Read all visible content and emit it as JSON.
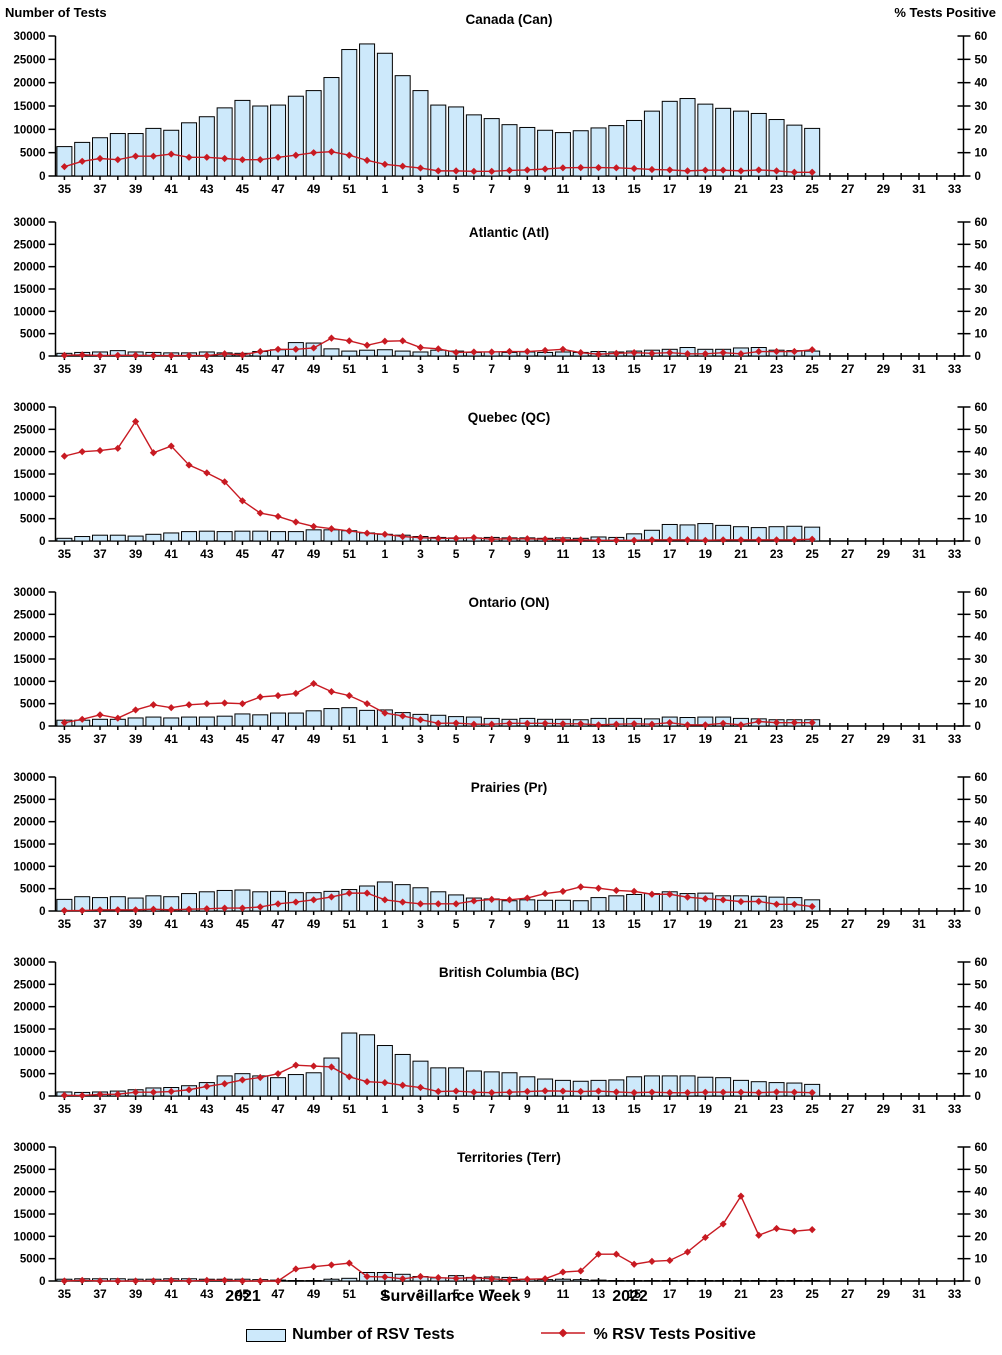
{
  "header": {
    "left_axis_label": "Number of Tests",
    "right_axis_label": "% Tests Positive"
  },
  "footer": {
    "year_left": "2021",
    "xlabel": "Surveillance Week",
    "year_right": "2022",
    "legend_bar_label": "Number of RSV Tests",
    "legend_line_label": "% RSV Tests Positive"
  },
  "colors": {
    "bar_fill": "#cde9fb",
    "bar_stroke": "#000000",
    "line": "#c81a22",
    "text": "#000000"
  },
  "chart_data": {
    "type": "bar+line",
    "x_categories": [
      "35",
      "36",
      "37",
      "38",
      "39",
      "40",
      "41",
      "42",
      "43",
      "44",
      "45",
      "46",
      "47",
      "48",
      "49",
      "50",
      "51",
      "52",
      "1",
      "2",
      "3",
      "4",
      "5",
      "6",
      "7",
      "8",
      "9",
      "10",
      "11",
      "12",
      "13",
      "14",
      "15",
      "16",
      "17",
      "18",
      "19",
      "20",
      "21",
      "22",
      "23",
      "24",
      "25",
      "26",
      "27",
      "28",
      "29",
      "30",
      "31",
      "32",
      "33"
    ],
    "x_tick_labels": [
      "35",
      "37",
      "39",
      "41",
      "43",
      "45",
      "47",
      "49",
      "51",
      "1",
      "3",
      "5",
      "7",
      "9",
      "11",
      "13",
      "15",
      "17",
      "19",
      "21",
      "23",
      "25",
      "27",
      "29",
      "31",
      "33"
    ],
    "left_axis": {
      "label": "Number of Tests",
      "ticks": [
        0,
        5000,
        10000,
        15000,
        20000,
        25000,
        30000
      ],
      "max": 30000
    },
    "right_axis": {
      "label": "% Tests Positive",
      "ticks": [
        0,
        10,
        20,
        30,
        40,
        50,
        60
      ],
      "max": 60
    },
    "bar_series_name": "Number of RSV Tests",
    "line_series_name": "% RSV Tests Positive",
    "weeks_with_data": 43,
    "panels": [
      {
        "title": "Canada (Can)",
        "tests": [
          6300,
          7200,
          8200,
          9100,
          9100,
          10200,
          9800,
          11400,
          12700,
          14600,
          16200,
          15000,
          15200,
          17100,
          18300,
          21100,
          27100,
          28300,
          26300,
          21500,
          18300,
          15200,
          14800,
          13100,
          12300,
          11000,
          10400,
          9800,
          9300,
          9700,
          10300,
          10800,
          11900,
          13900,
          16000,
          16600,
          15400,
          14500,
          13900,
          13400,
          12100,
          10900,
          10200
        ],
        "pct_positive": [
          4,
          6.3,
          7.5,
          7,
          8.5,
          8.5,
          9.4,
          8,
          8,
          7.5,
          7,
          7,
          8,
          8.9,
          10,
          10.4,
          8.9,
          6.7,
          5,
          4.2,
          3.4,
          2.2,
          2.2,
          2,
          2,
          2.4,
          2.6,
          3,
          3.5,
          3.6,
          3.6,
          3.5,
          3.2,
          2.8,
          2.6,
          2.2,
          2.5,
          2.5,
          2.2,
          2.6,
          2.2,
          1.6,
          1.6
        ]
      },
      {
        "title": "Atlantic (Atl)",
        "tests": [
          600,
          800,
          900,
          1200,
          900,
          800,
          700,
          700,
          900,
          700,
          600,
          1000,
          1400,
          3000,
          2900,
          1600,
          1100,
          1300,
          1400,
          1100,
          900,
          1300,
          1100,
          800,
          900,
          800,
          900,
          800,
          900,
          800,
          1000,
          900,
          1100,
          1300,
          1500,
          1900,
          1500,
          1500,
          1800,
          1900,
          1300,
          1200,
          1100
        ],
        "pct_positive": [
          0.3,
          0.5,
          0.2,
          0.3,
          0.3,
          0.2,
          0.2,
          0.2,
          0.2,
          1,
          0.5,
          2,
          3,
          3,
          3.6,
          8,
          6.8,
          4.8,
          6.6,
          6.8,
          3.8,
          3.2,
          1.6,
          1.8,
          1.8,
          2,
          2,
          2.5,
          3,
          1.5,
          0.8,
          1.2,
          1.5,
          1.2,
          1.5,
          1,
          1,
          1.5,
          1,
          2,
          2,
          2,
          2.8
        ]
      },
      {
        "title": "Quebec (QC)",
        "tests": [
          600,
          1000,
          1300,
          1300,
          1100,
          1500,
          1800,
          2100,
          2200,
          2100,
          2200,
          2200,
          2100,
          2100,
          2500,
          2500,
          2300,
          1800,
          1500,
          1300,
          1000,
          800,
          700,
          700,
          800,
          700,
          700,
          600,
          700,
          600,
          900,
          800,
          1600,
          2400,
          3700,
          3600,
          3900,
          3500,
          3200,
          3000,
          3200,
          3300,
          3100
        ],
        "pct_positive": [
          38,
          40,
          40.5,
          41.5,
          53.5,
          39.5,
          42.5,
          34,
          30.5,
          26.5,
          18,
          12.5,
          11,
          8.5,
          6.5,
          5.5,
          4.5,
          3.5,
          3,
          2,
          1.5,
          1.2,
          1.2,
          1.5,
          0.8,
          1,
          1,
          0.8,
          0.5,
          0.5,
          0.3,
          0.3,
          0.3,
          0.5,
          0.5,
          0.5,
          0.3,
          0.5,
          0.5,
          0.5,
          0.5,
          0.5,
          0.8
        ]
      },
      {
        "title": "Ontario (ON)",
        "tests": [
          1300,
          1300,
          1500,
          1500,
          1800,
          2000,
          1800,
          2000,
          2000,
          2200,
          2700,
          2500,
          2900,
          2900,
          3400,
          3900,
          4100,
          3500,
          3600,
          3000,
          2600,
          2400,
          2100,
          2000,
          1700,
          1500,
          1700,
          1500,
          1500,
          1400,
          1700,
          1700,
          1700,
          1600,
          2000,
          1900,
          2000,
          2000,
          1700,
          1600,
          1400,
          1400,
          1400
        ],
        "pct_positive": [
          1.5,
          3,
          5,
          3.5,
          7.2,
          9.5,
          8.2,
          9.5,
          10,
          10.3,
          10,
          13,
          13.6,
          14.6,
          19,
          15.4,
          13.6,
          10,
          5.8,
          4.5,
          2.8,
          1.2,
          1.3,
          0.8,
          0.8,
          1.2,
          1.2,
          1.2,
          1,
          1,
          0.5,
          0.8,
          1,
          0.8,
          1.5,
          0.5,
          0.5,
          1.2,
          0.5,
          2,
          1.5,
          1.5,
          1.5
        ]
      },
      {
        "title": "Prairies (Pr)",
        "tests": [
          2600,
          3200,
          3000,
          3200,
          2900,
          3400,
          3200,
          3900,
          4300,
          4600,
          4700,
          4300,
          4400,
          4100,
          4100,
          4400,
          4800,
          5600,
          6500,
          5900,
          5200,
          4300,
          3600,
          2900,
          2700,
          2300,
          2500,
          2400,
          2400,
          2300,
          3000,
          3400,
          3700,
          3900,
          4300,
          3900,
          4000,
          3400,
          3400,
          3300,
          3100,
          3000,
          2500
        ],
        "pct_positive": [
          0.2,
          0.2,
          0.5,
          0.5,
          0.5,
          0.8,
          0.5,
          0.8,
          1,
          1.3,
          1.3,
          1.8,
          3.2,
          4,
          5,
          6.3,
          8,
          8,
          5,
          4,
          3.2,
          3.2,
          3.2,
          4.5,
          5.2,
          5,
          5.8,
          7.8,
          8.8,
          10.8,
          10.2,
          9.2,
          8.8,
          7.5,
          7.5,
          6.2,
          5.5,
          5,
          4.2,
          4.3,
          3,
          3,
          2
        ]
      },
      {
        "title": "British Columbia (BC)",
        "tests": [
          900,
          800,
          900,
          1100,
          1400,
          1800,
          1900,
          2300,
          3000,
          4500,
          5000,
          4500,
          4100,
          4800,
          5200,
          8500,
          14100,
          13700,
          11300,
          9300,
          7800,
          6300,
          6300,
          5600,
          5400,
          5200,
          4300,
          3800,
          3500,
          3300,
          3500,
          3600,
          4300,
          4500,
          4500,
          4500,
          4200,
          4100,
          3500,
          3200,
          3000,
          2900,
          2600
        ],
        "pct_positive": [
          0.3,
          0.2,
          0.7,
          0.8,
          1.7,
          1.7,
          2,
          2.8,
          4.3,
          5.5,
          7.2,
          8.3,
          10,
          13.8,
          13.4,
          13,
          8.6,
          6.4,
          6,
          4.8,
          3.8,
          2,
          2.2,
          1.7,
          1.5,
          1.7,
          2,
          2.3,
          2.2,
          2,
          2.2,
          1.8,
          1.5,
          1.7,
          1.5,
          1.5,
          1.7,
          1.7,
          1.7,
          1.5,
          1.8,
          1.7,
          1.5
        ]
      },
      {
        "title": "Territories (Terr)",
        "tests": [
          400,
          500,
          500,
          500,
          400,
          400,
          500,
          500,
          400,
          400,
          400,
          300,
          200,
          100,
          100,
          400,
          600,
          1900,
          1900,
          1500,
          1000,
          700,
          1200,
          800,
          900,
          800,
          400,
          300,
          400,
          300,
          200,
          100,
          100,
          100,
          100,
          100,
          100,
          100,
          100,
          100,
          100,
          100,
          100
        ],
        "pct_positive": [
          0,
          0.3,
          0,
          0,
          0,
          0,
          0.3,
          0,
          0.3,
          0.3,
          0,
          0,
          0,
          5.4,
          6.4,
          7.2,
          8,
          2,
          1.8,
          1,
          2,
          1.5,
          1.2,
          1.5,
          1,
          0.5,
          0.8,
          1,
          4,
          4.5,
          12,
          12,
          7.5,
          8.8,
          9.2,
          13,
          19.5,
          25.5,
          38,
          20.5,
          23.5,
          22.3,
          23
        ]
      }
    ]
  }
}
